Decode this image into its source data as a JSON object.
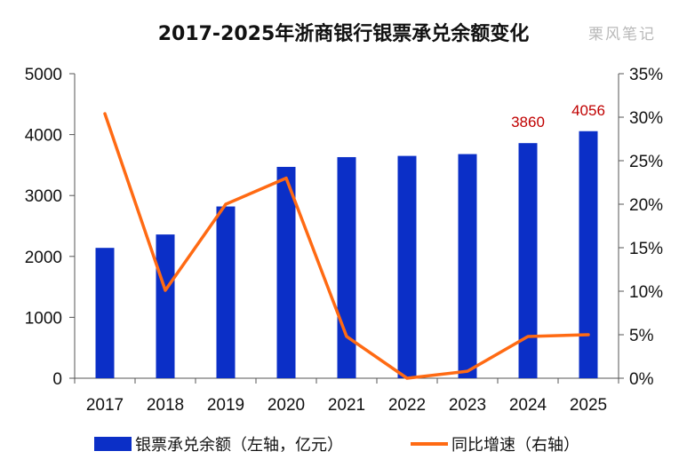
{
  "title": "2017-2025年浙商银行银票承兑余额变化",
  "watermark": "栗风笔记",
  "chart_data": {
    "type": "bar",
    "categories": [
      "2017",
      "2018",
      "2019",
      "2020",
      "2021",
      "2022",
      "2023",
      "2024",
      "2025"
    ],
    "series": [
      {
        "name": "银票承兑余额（左轴，亿元）",
        "type": "bar",
        "axis": "left",
        "color": "#0b2fc7",
        "values": [
          2140,
          2360,
          2820,
          3470,
          3630,
          3650,
          3680,
          3860,
          4056
        ]
      },
      {
        "name": "同比增速（右轴）",
        "type": "line",
        "axis": "right",
        "color": "#ff6a13",
        "values": [
          30.4,
          10.1,
          20.0,
          23.0,
          4.8,
          0.0,
          0.8,
          4.8,
          5.0
        ]
      }
    ],
    "data_labels": [
      {
        "index": 7,
        "text": "3860"
      },
      {
        "index": 8,
        "text": "4056"
      }
    ],
    "left_axis": {
      "min": 0,
      "max": 5000,
      "ticks": [
        "0",
        "1000",
        "2000",
        "3000",
        "4000",
        "5000"
      ]
    },
    "right_axis": {
      "min": 0,
      "max": 35,
      "ticks": [
        "0%",
        "5%",
        "10%",
        "15%",
        "20%",
        "25%",
        "30%",
        "35%"
      ]
    },
    "grid": false,
    "legend_position": "bottom"
  }
}
